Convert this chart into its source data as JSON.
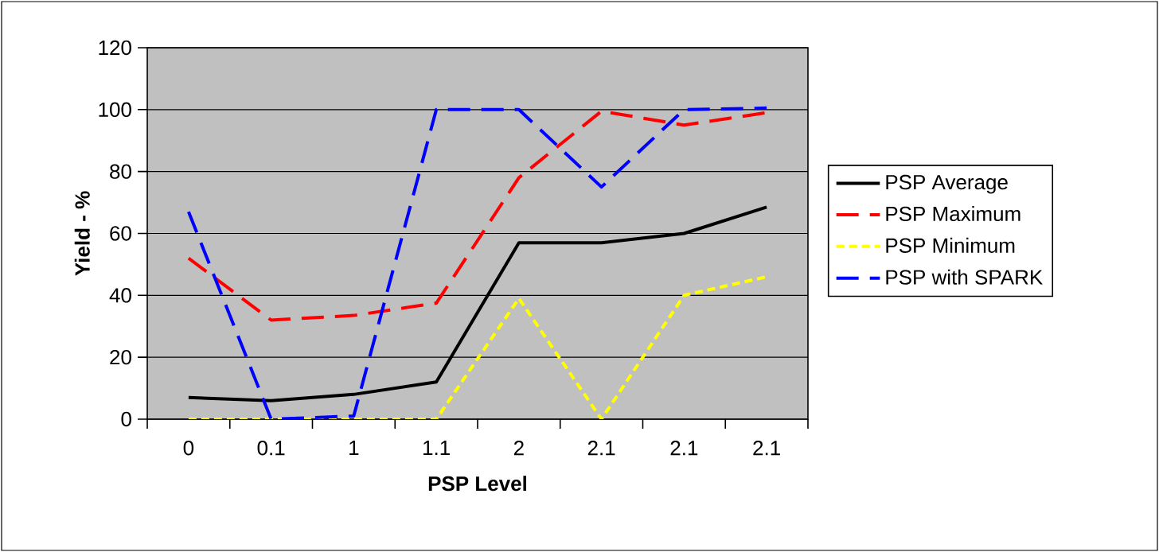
{
  "chart_data": {
    "type": "line",
    "xlabel": "PSP Level",
    "ylabel": "Yield - %",
    "categories": [
      "0",
      "0.1",
      "1",
      "1.1",
      "2",
      "2.1",
      "2.1",
      "2.1"
    ],
    "series": [
      {
        "name": "PSP Average",
        "color": "#000000",
        "line_style": "solid",
        "values": [
          7,
          6,
          8,
          12,
          57,
          57,
          60,
          68.5
        ]
      },
      {
        "name": "PSP Maximum",
        "color": "#ff0000",
        "line_style": "dashed",
        "values": [
          52,
          32,
          33.5,
          37.5,
          78,
          99.5,
          95,
          99
        ]
      },
      {
        "name": "PSP Minimum",
        "color": "#ffff00",
        "line_style": "dotted",
        "values": [
          0,
          0,
          0,
          0,
          39,
          0,
          40,
          46
        ]
      },
      {
        "name": "PSP with SPARK",
        "color": "#0000ff",
        "line_style": "dashed",
        "values": [
          67,
          0,
          1,
          100,
          100,
          75,
          100,
          100.5
        ]
      }
    ],
    "ylim": [
      0,
      120
    ],
    "yticks": [
      0,
      20,
      40,
      60,
      80,
      100,
      120
    ],
    "grid": "y",
    "legend": "right",
    "marker": "none"
  }
}
